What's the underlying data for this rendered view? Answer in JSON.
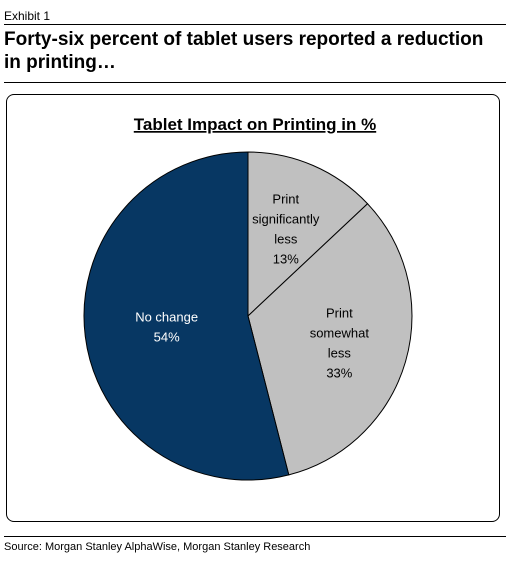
{
  "exhibit_label": "Exhibit 1",
  "headline": "Forty-six percent of tablet users reported a reduction in printing…",
  "source": "Source: Morgan Stanley AlphaWise, Morgan Stanley Research",
  "chart_data": {
    "type": "pie",
    "title": "Tablet Impact on Printing in %",
    "slices": [
      {
        "label_lines": [
          "Print",
          "significantly",
          "less"
        ],
        "value": 13,
        "value_label": "13%",
        "color": "#c0c0c0",
        "label_color": "#000000"
      },
      {
        "label_lines": [
          "Print",
          "somewhat",
          "less"
        ],
        "value": 33,
        "value_label": "33%",
        "color": "#c0c0c0",
        "label_color": "#000000"
      },
      {
        "label_lines": [
          "No change"
        ],
        "value": 54,
        "value_label": "54%",
        "color": "#073763",
        "label_color": "#ffffff"
      }
    ],
    "start_angle_deg": 0,
    "direction": "clockwise",
    "border_color": "#000000"
  }
}
